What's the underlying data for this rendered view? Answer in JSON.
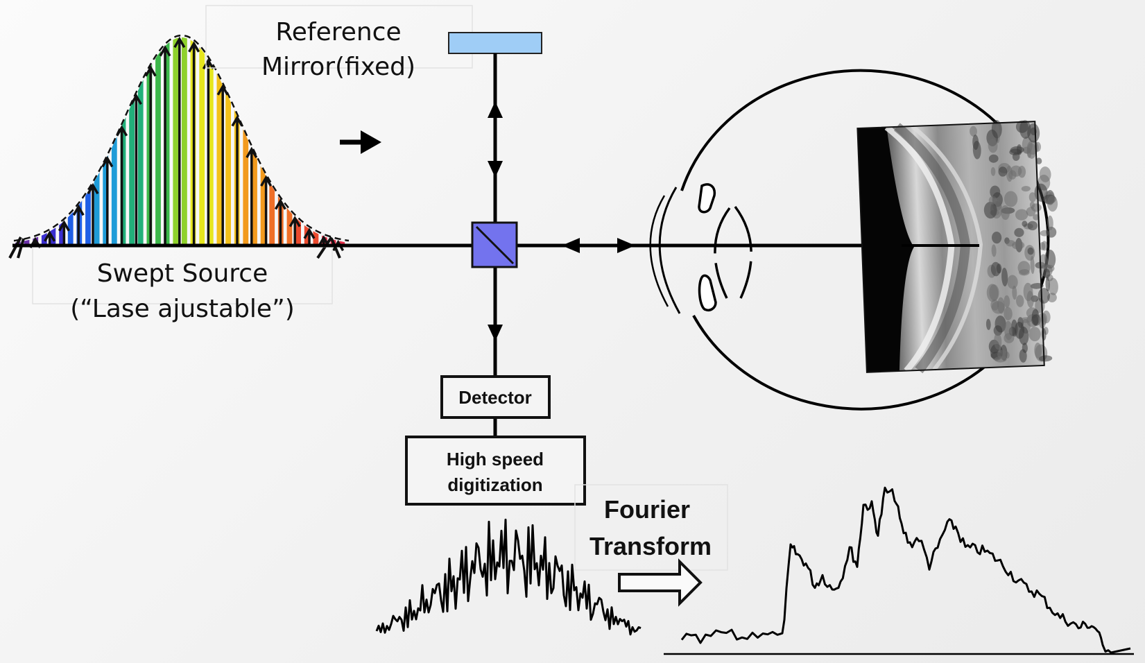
{
  "labels": {
    "reference_line1": "Reference",
    "reference_line2": "Mirror(fixed)",
    "source_line1": "Swept Source",
    "source_line2": "(“Lase ajustable”)",
    "detector": "Detector",
    "digitization_line1": "High speed",
    "digitization_line2": "digitization",
    "fourier_line1": "Fourier",
    "fourier_line2": "Transform"
  },
  "icons": {
    "beam_splitter": "beam-splitter-cube",
    "mirror": "reference-mirror",
    "eye": "eye-diagram",
    "retina_scan": "oct-retina-bscan",
    "fourier_arrow": "hollow-right-arrow",
    "source_arrow": "right-arrow"
  },
  "colors": {
    "mirror": "#9fcdf6",
    "beam_splitter": "#7373ee",
    "line": "#000000",
    "spectrum": [
      "#6a2fa8",
      "#3b2fd0",
      "#1f5fe6",
      "#1f9cd8",
      "#22b07a",
      "#3cb84a",
      "#8fd12c",
      "#e6e61e",
      "#f3c11a",
      "#f29a1e",
      "#ef6f28",
      "#ea4a2e",
      "#e3304a"
    ]
  }
}
